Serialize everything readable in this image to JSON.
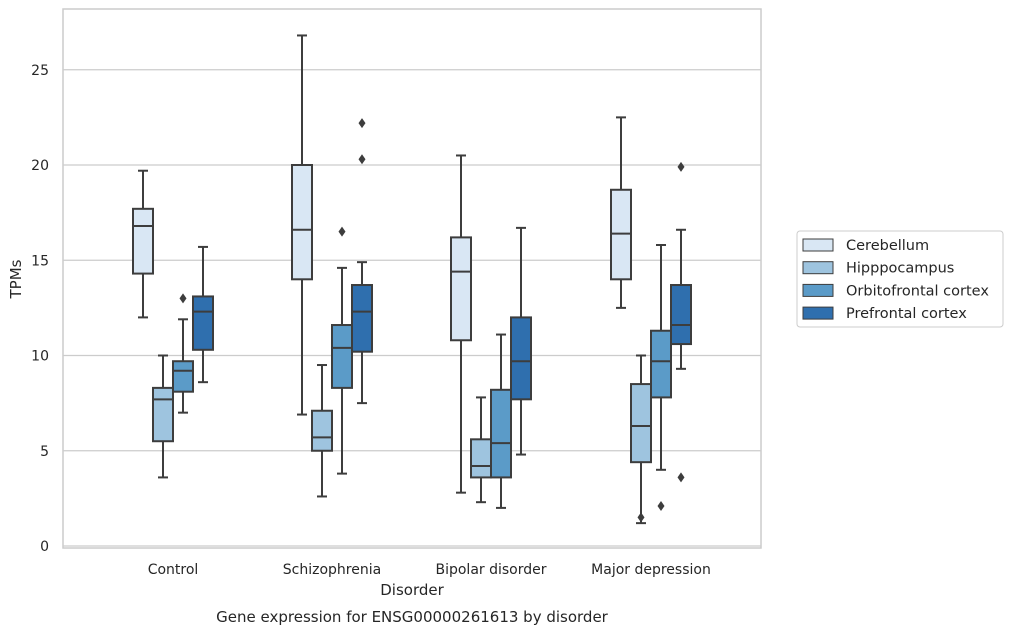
{
  "chart_data": {
    "type": "boxplot",
    "caption": "Gene expression for ENSG00000261613 by disorder",
    "xlabel": "Disorder",
    "ylabel": "TPMs",
    "ylim": [
      0,
      28.2
    ],
    "yticks": [
      0,
      5,
      10,
      15,
      20,
      25
    ],
    "grid": "horizontal",
    "legend_position": "right",
    "categories": [
      "Control",
      "Schizophrenia",
      "Bipolar disorder",
      "Major depression"
    ],
    "series": [
      {
        "name": "Cerebellum",
        "color": "#d9e7f4",
        "boxes": [
          {
            "whislo": 12.0,
            "q1": 14.3,
            "med": 16.8,
            "q3": 17.7,
            "whishi": 19.7,
            "fliers": []
          },
          {
            "whislo": 6.9,
            "q1": 14.0,
            "med": 16.6,
            "q3": 20.0,
            "whishi": 26.8,
            "fliers": []
          },
          {
            "whislo": 2.8,
            "q1": 10.8,
            "med": 14.4,
            "q3": 16.2,
            "whishi": 20.5,
            "fliers": []
          },
          {
            "whislo": 12.5,
            "q1": 14.0,
            "med": 16.4,
            "q3": 18.7,
            "whishi": 22.5,
            "fliers": []
          }
        ]
      },
      {
        "name": "Hipppocampus",
        "color": "#9ec4df",
        "boxes": [
          {
            "whislo": 3.6,
            "q1": 5.5,
            "med": 7.7,
            "q3": 8.3,
            "whishi": 10.0,
            "fliers": []
          },
          {
            "whislo": 2.6,
            "q1": 5.0,
            "med": 5.7,
            "q3": 7.1,
            "whishi": 9.5,
            "fliers": []
          },
          {
            "whislo": 2.3,
            "q1": 3.6,
            "med": 4.2,
            "q3": 5.6,
            "whishi": 7.8,
            "fliers": []
          },
          {
            "whislo": 1.2,
            "q1": 4.4,
            "med": 6.3,
            "q3": 8.5,
            "whishi": 10.0,
            "fliers": [
              1.5
            ]
          }
        ]
      },
      {
        "name": "Orbitofrontal cortex",
        "color": "#5b9bc8",
        "boxes": [
          {
            "whislo": 7.0,
            "q1": 8.1,
            "med": 9.2,
            "q3": 9.7,
            "whishi": 11.9,
            "fliers": [
              13.0
            ]
          },
          {
            "whislo": 3.8,
            "q1": 8.3,
            "med": 10.4,
            "q3": 11.6,
            "whishi": 14.6,
            "fliers": [
              16.5
            ]
          },
          {
            "whislo": 2.0,
            "q1": 3.6,
            "med": 5.4,
            "q3": 8.2,
            "whishi": 11.1,
            "fliers": []
          },
          {
            "whislo": 4.0,
            "q1": 7.8,
            "med": 9.7,
            "q3": 11.3,
            "whishi": 15.8,
            "fliers": [
              2.1
            ]
          }
        ]
      },
      {
        "name": "Prefrontal cortex",
        "color": "#2f6fae",
        "boxes": [
          {
            "whislo": 8.6,
            "q1": 10.3,
            "med": 12.3,
            "q3": 13.1,
            "whishi": 15.7,
            "fliers": []
          },
          {
            "whislo": 7.5,
            "q1": 10.2,
            "med": 12.3,
            "q3": 13.7,
            "whishi": 14.9,
            "fliers": [
              20.3,
              22.2
            ]
          },
          {
            "whislo": 4.8,
            "q1": 7.7,
            "med": 9.7,
            "q3": 12.0,
            "whishi": 16.7,
            "fliers": []
          },
          {
            "whislo": 9.3,
            "q1": 10.6,
            "med": 11.6,
            "q3": 13.7,
            "whishi": 16.6,
            "fliers": [
              3.6,
              19.9
            ]
          }
        ]
      }
    ]
  }
}
